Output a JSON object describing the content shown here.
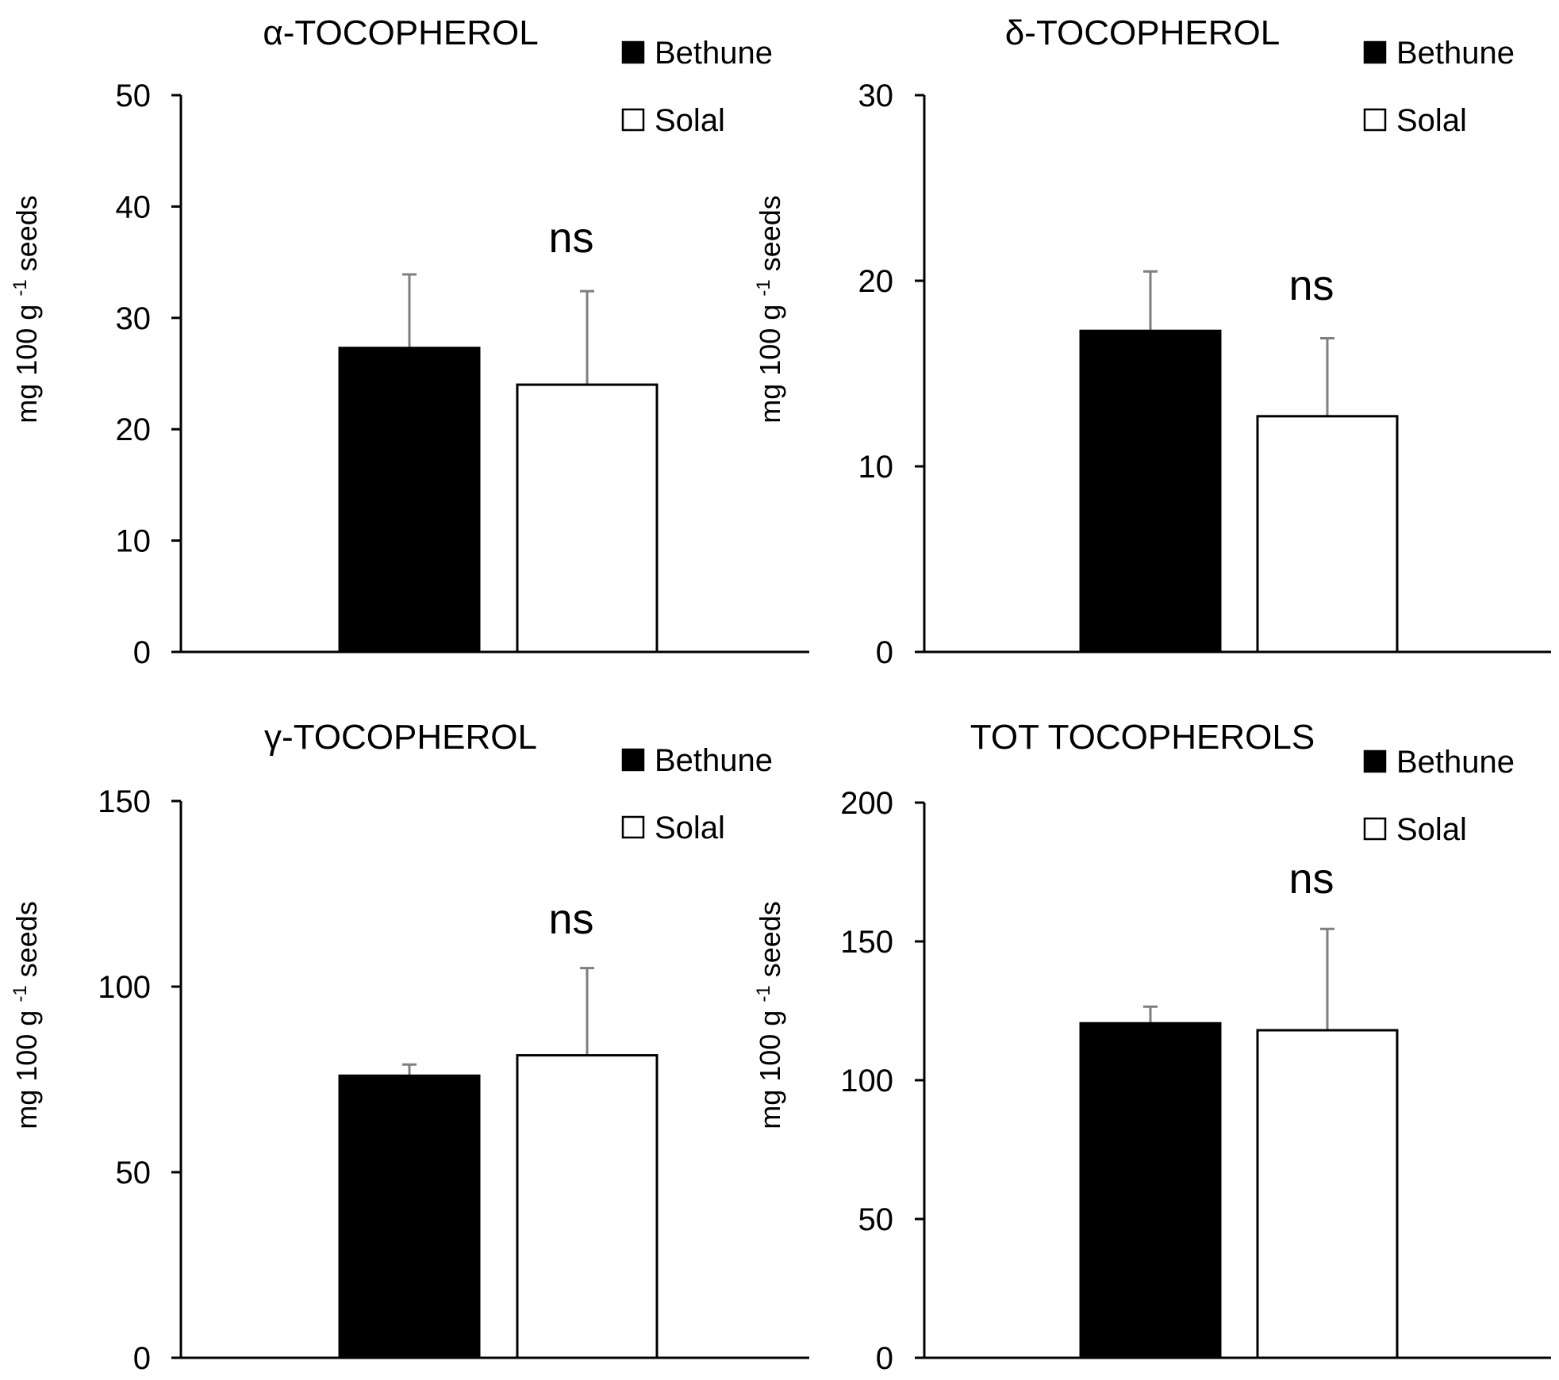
{
  "figure": {
    "legend_labels": [
      "Bethune",
      "Solal"
    ],
    "colors": {
      "Bethune": "#000000",
      "Solal": "#ffffff",
      "axis": "#000000",
      "error_bar": "#7f7f7f"
    }
  },
  "chart_data": [
    {
      "type": "bar",
      "title": "α-TOCOPHEROL",
      "ylabel": "mg  100 g -1 seeds",
      "ylim": [
        0,
        50
      ],
      "yticks": [
        "0",
        "10",
        "20",
        "30",
        "40",
        "50"
      ],
      "legend": "top-right",
      "annotation": "ns",
      "series": [
        {
          "name": "Bethune",
          "value": 27.3,
          "error": 6.6
        },
        {
          "name": "Solal",
          "value": 24.0,
          "error": 8.4
        }
      ]
    },
    {
      "type": "bar",
      "title": "δ-TOCOPHEROL",
      "ylabel": "mg  100 g -1 seeds",
      "ylim": [
        0,
        30
      ],
      "yticks": [
        "0",
        "10",
        "20",
        "30"
      ],
      "legend": "top-right",
      "annotation": "ns",
      "series": [
        {
          "name": "Bethune",
          "value": 17.3,
          "error": 3.2
        },
        {
          "name": "Solal",
          "value": 12.7,
          "error": 4.2
        }
      ]
    },
    {
      "type": "bar",
      "title": "γ-TOCOPHEROL",
      "ylabel": "mg  100 g -1 seeds",
      "ylim": [
        0,
        150
      ],
      "yticks": [
        "0",
        "50",
        "100",
        "150"
      ],
      "legend": "top-right",
      "annotation": "ns",
      "series": [
        {
          "name": "Bethune",
          "value": 76,
          "error": 3
        },
        {
          "name": "Solal",
          "value": 81.5,
          "error": 23.5
        }
      ]
    },
    {
      "type": "bar",
      "title": "TOT TOCOPHEROLS",
      "ylabel": "mg  100 g -1 seeds",
      "ylim": [
        0,
        200
      ],
      "yticks": [
        "0",
        "50",
        "100",
        "150",
        "200"
      ],
      "legend": "top-right",
      "annotation": "ns",
      "series": [
        {
          "name": "Bethune",
          "value": 120.5,
          "error": 6
        },
        {
          "name": "Solal",
          "value": 118,
          "error": 36.5
        }
      ]
    }
  ]
}
